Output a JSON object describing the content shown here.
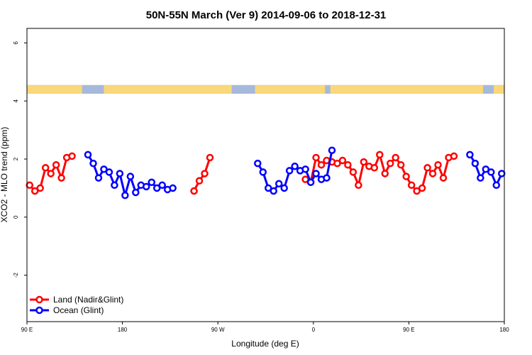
{
  "chart_data": {
    "type": "line",
    "title": "50N-55N March (Ver 9)   2014-09-06 to 2018-12-31",
    "xlabel": "Longitude (deg E)",
    "ylabel": "XCO2 - MLO trend (ppm)",
    "xlim": [
      0,
      90
    ],
    "ylim": [
      -3.6,
      6.5
    ],
    "x_tick_labels": [
      {
        "pos": 0,
        "text": "90 E"
      },
      {
        "pos": 18,
        "text": "180"
      },
      {
        "pos": 36,
        "text": "90 W"
      },
      {
        "pos": 54,
        "text": "0"
      },
      {
        "pos": 72,
        "text": "90 E"
      },
      {
        "pos": 90,
        "text": "180"
      }
    ],
    "y_ticks": [
      -2,
      0,
      2,
      4,
      6
    ],
    "grid": false,
    "legend_position": "bottom-left",
    "colors": {
      "land": "#ff0000",
      "ocean": "#0000ff",
      "band_ocean": "#a6b9da",
      "band_land": "#f9d77a"
    },
    "surface_band": {
      "y_range": [
        4.25,
        4.55
      ],
      "land_segments": [
        [
          0,
          10.4
        ],
        [
          14.5,
          38.6
        ],
        [
          43,
          56.2
        ],
        [
          57.2,
          86
        ],
        [
          88,
          90
        ]
      ]
    },
    "series": [
      {
        "name": "Land (Nadir&Glint)",
        "color": "#ff0000",
        "segments": [
          [
            [
              0.5,
              1.1
            ],
            [
              1.5,
              0.9
            ],
            [
              2.5,
              1.0
            ],
            [
              3.5,
              1.7
            ],
            [
              4.5,
              1.5
            ],
            [
              5.5,
              1.8
            ],
            [
              6.5,
              1.35
            ],
            [
              7.5,
              2.05
            ],
            [
              8.5,
              2.1
            ]
          ],
          [
            [
              31.5,
              0.9
            ],
            [
              32.5,
              1.25
            ],
            [
              33.5,
              1.5
            ],
            [
              34.5,
              2.05
            ]
          ],
          [
            [
              52.5,
              1.3
            ],
            [
              53.5,
              1.2
            ],
            [
              54.5,
              2.05
            ],
            [
              55.5,
              1.8
            ],
            [
              56.5,
              1.95
            ],
            [
              57.5,
              1.9
            ],
            [
              58.5,
              1.85
            ],
            [
              59.5,
              1.95
            ],
            [
              60.5,
              1.8
            ],
            [
              61.5,
              1.55
            ],
            [
              62.5,
              1.1
            ],
            [
              63.5,
              1.9
            ],
            [
              64.5,
              1.75
            ],
            [
              65.5,
              1.7
            ],
            [
              66.5,
              2.15
            ],
            [
              67.5,
              1.5
            ],
            [
              68.5,
              1.85
            ],
            [
              69.5,
              2.05
            ],
            [
              70.5,
              1.8
            ],
            [
              71.5,
              1.4
            ],
            [
              72.5,
              1.1
            ],
            [
              73.5,
              0.9
            ],
            [
              74.5,
              1.0
            ],
            [
              75.5,
              1.7
            ],
            [
              76.5,
              1.5
            ],
            [
              77.5,
              1.8
            ],
            [
              78.5,
              1.35
            ],
            [
              79.5,
              2.05
            ],
            [
              80.5,
              2.1
            ]
          ]
        ]
      },
      {
        "name": "Ocean (Glint)",
        "color": "#0000ff",
        "segments": [
          [
            [
              11.5,
              2.15
            ],
            [
              12.5,
              1.85
            ],
            [
              13.5,
              1.35
            ],
            [
              14.5,
              1.65
            ],
            [
              15.5,
              1.55
            ],
            [
              16.5,
              1.1
            ],
            [
              17.5,
              1.5
            ],
            [
              18.5,
              0.75
            ],
            [
              19.5,
              1.4
            ],
            [
              20.5,
              0.85
            ],
            [
              21.5,
              1.1
            ],
            [
              22.5,
              1.05
            ],
            [
              23.5,
              1.2
            ],
            [
              24.5,
              1.0
            ],
            [
              25.5,
              1.1
            ],
            [
              26.5,
              0.95
            ],
            [
              27.5,
              1.0
            ]
          ],
          [
            [
              43.5,
              1.85
            ],
            [
              44.5,
              1.55
            ],
            [
              45.5,
              1.0
            ],
            [
              46.5,
              0.9
            ],
            [
              47.5,
              1.15
            ],
            [
              48.5,
              1.0
            ],
            [
              49.5,
              1.6
            ],
            [
              50.5,
              1.75
            ],
            [
              51.5,
              1.6
            ],
            [
              52.5,
              1.65
            ],
            [
              53.5,
              1.2
            ],
            [
              54.5,
              1.5
            ],
            [
              55.5,
              1.3
            ],
            [
              56.5,
              1.35
            ],
            [
              57.5,
              2.3
            ]
          ],
          [
            [
              83.5,
              2.15
            ],
            [
              84.5,
              1.85
            ],
            [
              85.5,
              1.35
            ],
            [
              86.5,
              1.65
            ],
            [
              87.5,
              1.55
            ],
            [
              88.5,
              1.1
            ],
            [
              89.5,
              1.5
            ]
          ]
        ]
      }
    ]
  }
}
